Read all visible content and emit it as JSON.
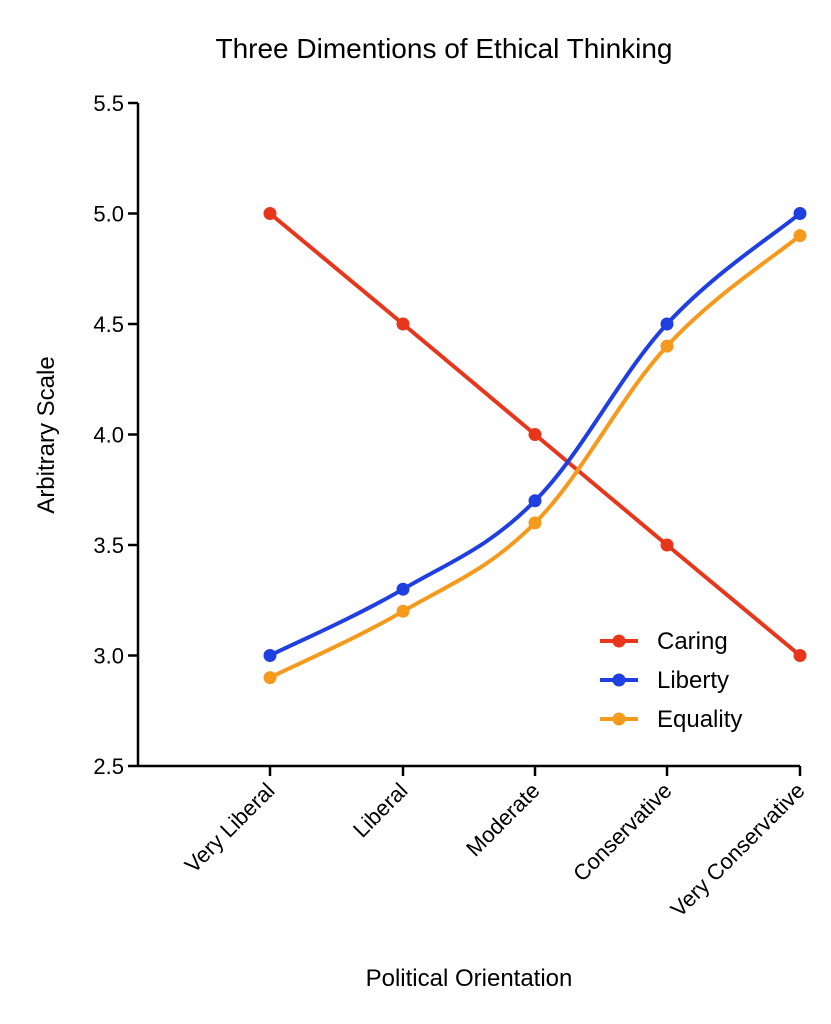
{
  "chart_data": {
    "type": "line",
    "title": "Three Dimentions of Ethical Thinking",
    "xlabel": "Political Orientation",
    "ylabel": "Arbitrary Scale",
    "categories": [
      "Very Liberal",
      "Liberal",
      "Moderate",
      "Conservative",
      "Very Conservative"
    ],
    "ylim": [
      2.5,
      5.5
    ],
    "yticks": [
      "2.5",
      "3.0",
      "3.5",
      "4.0",
      "4.5",
      "5.0",
      "5.5"
    ],
    "grid": false,
    "legend_position": "bottom-right",
    "series": [
      {
        "name": "Caring",
        "color": "#e8361c",
        "values": [
          5.0,
          4.5,
          4.0,
          3.5,
          3.0
        ]
      },
      {
        "name": "Liberty",
        "color": "#1f3fe0",
        "values": [
          3.0,
          3.3,
          3.7,
          4.5,
          5.0
        ]
      },
      {
        "name": "Equality",
        "color": "#f59a1c",
        "values": [
          2.9,
          3.2,
          3.6,
          4.4,
          4.9
        ]
      }
    ]
  }
}
